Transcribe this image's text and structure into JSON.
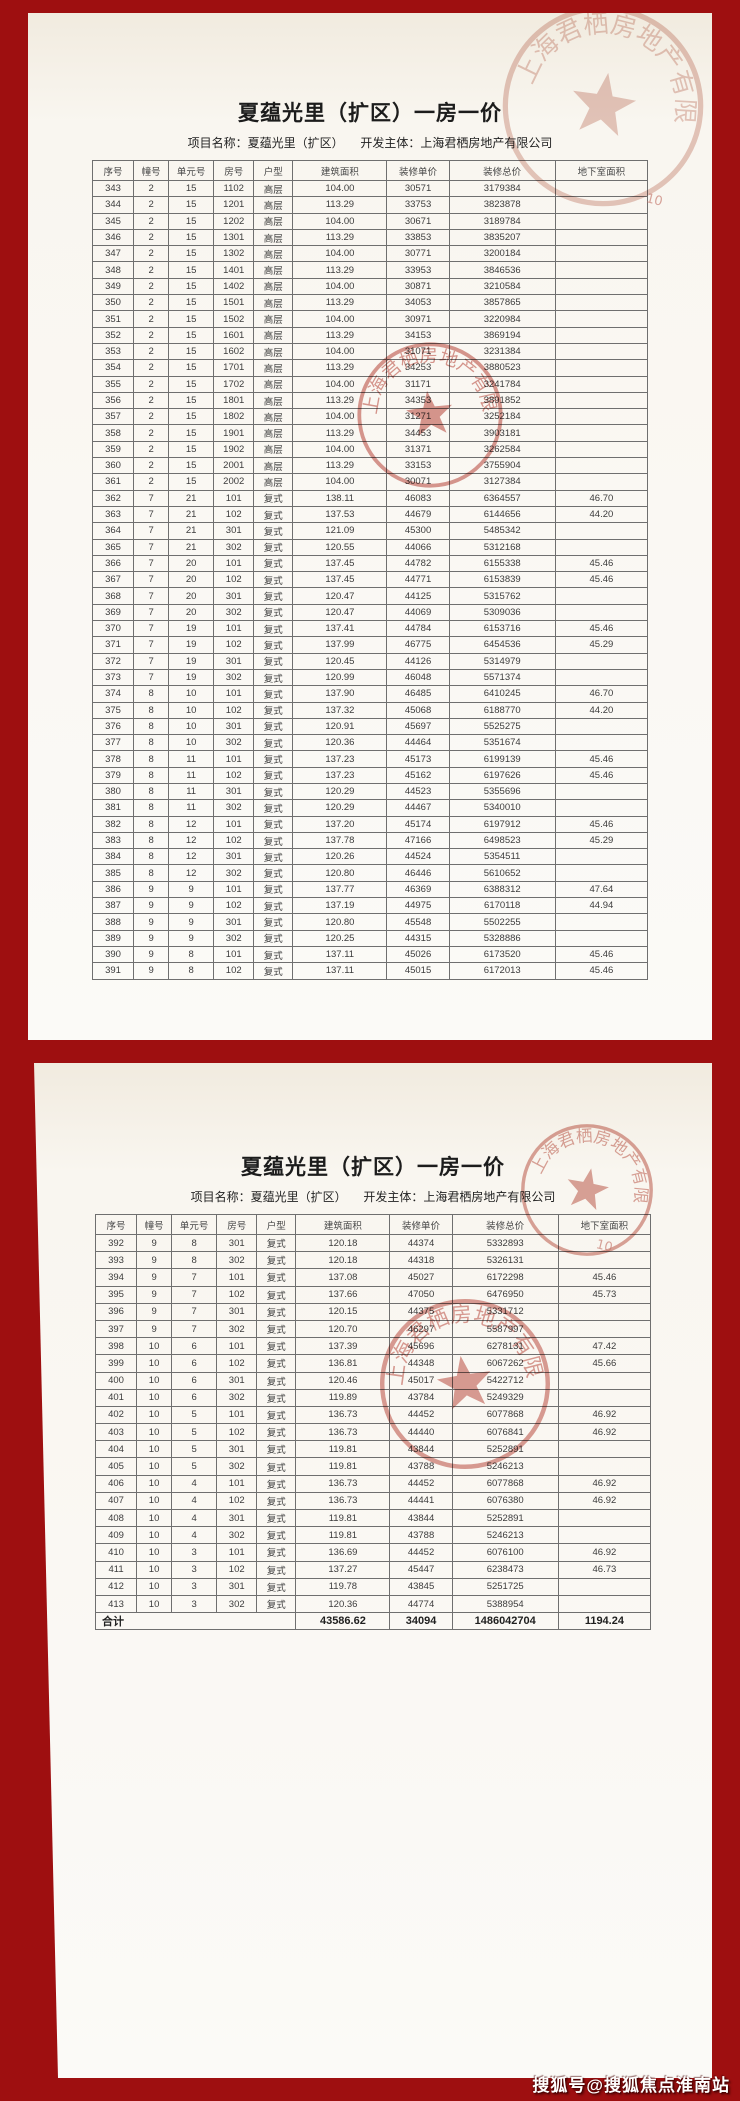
{
  "doc": {
    "title": "夏蕴光里（扩区）一房一价",
    "project_label": "项目名称：",
    "project_name": "夏蕴光里（扩区）",
    "developer_label": "开发主体：",
    "developer_name": "上海君栖房地产有限公司"
  },
  "table": {
    "headers": [
      "序号",
      "幢号",
      "单元号",
      "房号",
      "户型",
      "建筑面积",
      "装修单价",
      "装修总价",
      "地下室面积"
    ],
    "page1_rows": [
      [
        "343",
        "2",
        "15",
        "1102",
        "高层",
        "104.00",
        "30571",
        "3179384",
        ""
      ],
      [
        "344",
        "2",
        "15",
        "1201",
        "高层",
        "113.29",
        "33753",
        "3823878",
        ""
      ],
      [
        "345",
        "2",
        "15",
        "1202",
        "高层",
        "104.00",
        "30671",
        "3189784",
        ""
      ],
      [
        "346",
        "2",
        "15",
        "1301",
        "高层",
        "113.29",
        "33853",
        "3835207",
        ""
      ],
      [
        "347",
        "2",
        "15",
        "1302",
        "高层",
        "104.00",
        "30771",
        "3200184",
        ""
      ],
      [
        "348",
        "2",
        "15",
        "1401",
        "高层",
        "113.29",
        "33953",
        "3846536",
        ""
      ],
      [
        "349",
        "2",
        "15",
        "1402",
        "高层",
        "104.00",
        "30871",
        "3210584",
        ""
      ],
      [
        "350",
        "2",
        "15",
        "1501",
        "高层",
        "113.29",
        "34053",
        "3857865",
        ""
      ],
      [
        "351",
        "2",
        "15",
        "1502",
        "高层",
        "104.00",
        "30971",
        "3220984",
        ""
      ],
      [
        "352",
        "2",
        "15",
        "1601",
        "高层",
        "113.29",
        "34153",
        "3869194",
        ""
      ],
      [
        "353",
        "2",
        "15",
        "1602",
        "高层",
        "104.00",
        "31071",
        "3231384",
        ""
      ],
      [
        "354",
        "2",
        "15",
        "1701",
        "高层",
        "113.29",
        "34253",
        "3880523",
        ""
      ],
      [
        "355",
        "2",
        "15",
        "1702",
        "高层",
        "104.00",
        "31171",
        "3241784",
        ""
      ],
      [
        "356",
        "2",
        "15",
        "1801",
        "高层",
        "113.29",
        "34353",
        "3891852",
        ""
      ],
      [
        "357",
        "2",
        "15",
        "1802",
        "高层",
        "104.00",
        "31271",
        "3252184",
        ""
      ],
      [
        "358",
        "2",
        "15",
        "1901",
        "高层",
        "113.29",
        "34453",
        "3903181",
        ""
      ],
      [
        "359",
        "2",
        "15",
        "1902",
        "高层",
        "104.00",
        "31371",
        "3262584",
        ""
      ],
      [
        "360",
        "2",
        "15",
        "2001",
        "高层",
        "113.29",
        "33153",
        "3755904",
        ""
      ],
      [
        "361",
        "2",
        "15",
        "2002",
        "高层",
        "104.00",
        "30071",
        "3127384",
        ""
      ],
      [
        "362",
        "7",
        "21",
        "101",
        "复式",
        "138.11",
        "46083",
        "6364557",
        "46.70"
      ],
      [
        "363",
        "7",
        "21",
        "102",
        "复式",
        "137.53",
        "44679",
        "6144656",
        "44.20"
      ],
      [
        "364",
        "7",
        "21",
        "301",
        "复式",
        "121.09",
        "45300",
        "5485342",
        ""
      ],
      [
        "365",
        "7",
        "21",
        "302",
        "复式",
        "120.55",
        "44066",
        "5312168",
        ""
      ],
      [
        "366",
        "7",
        "20",
        "101",
        "复式",
        "137.45",
        "44782",
        "6155338",
        "45.46"
      ],
      [
        "367",
        "7",
        "20",
        "102",
        "复式",
        "137.45",
        "44771",
        "6153839",
        "45.46"
      ],
      [
        "368",
        "7",
        "20",
        "301",
        "复式",
        "120.47",
        "44125",
        "5315762",
        ""
      ],
      [
        "369",
        "7",
        "20",
        "302",
        "复式",
        "120.47",
        "44069",
        "5309036",
        ""
      ],
      [
        "370",
        "7",
        "19",
        "101",
        "复式",
        "137.41",
        "44784",
        "6153716",
        "45.46"
      ],
      [
        "371",
        "7",
        "19",
        "102",
        "复式",
        "137.99",
        "46775",
        "6454536",
        "45.29"
      ],
      [
        "372",
        "7",
        "19",
        "301",
        "复式",
        "120.45",
        "44126",
        "5314979",
        ""
      ],
      [
        "373",
        "7",
        "19",
        "302",
        "复式",
        "120.99",
        "46048",
        "5571374",
        ""
      ],
      [
        "374",
        "8",
        "10",
        "101",
        "复式",
        "137.90",
        "46485",
        "6410245",
        "46.70"
      ],
      [
        "375",
        "8",
        "10",
        "102",
        "复式",
        "137.32",
        "45068",
        "6188770",
        "44.20"
      ],
      [
        "376",
        "8",
        "10",
        "301",
        "复式",
        "120.91",
        "45697",
        "5525275",
        ""
      ],
      [
        "377",
        "8",
        "10",
        "302",
        "复式",
        "120.36",
        "44464",
        "5351674",
        ""
      ],
      [
        "378",
        "8",
        "11",
        "101",
        "复式",
        "137.23",
        "45173",
        "6199139",
        "45.46"
      ],
      [
        "379",
        "8",
        "11",
        "102",
        "复式",
        "137.23",
        "45162",
        "6197626",
        "45.46"
      ],
      [
        "380",
        "8",
        "11",
        "301",
        "复式",
        "120.29",
        "44523",
        "5355696",
        ""
      ],
      [
        "381",
        "8",
        "11",
        "302",
        "复式",
        "120.29",
        "44467",
        "5340010",
        ""
      ],
      [
        "382",
        "8",
        "12",
        "101",
        "复式",
        "137.20",
        "45174",
        "6197912",
        "45.46"
      ],
      [
        "383",
        "8",
        "12",
        "102",
        "复式",
        "137.78",
        "47166",
        "6498523",
        "45.29"
      ],
      [
        "384",
        "8",
        "12",
        "301",
        "复式",
        "120.26",
        "44524",
        "5354511",
        ""
      ],
      [
        "385",
        "8",
        "12",
        "302",
        "复式",
        "120.80",
        "46446",
        "5610652",
        ""
      ],
      [
        "386",
        "9",
        "9",
        "101",
        "复式",
        "137.77",
        "46369",
        "6388312",
        "47.64"
      ],
      [
        "387",
        "9",
        "9",
        "102",
        "复式",
        "137.19",
        "44975",
        "6170118",
        "44.94"
      ],
      [
        "388",
        "9",
        "9",
        "301",
        "复式",
        "120.80",
        "45548",
        "5502255",
        ""
      ],
      [
        "389",
        "9",
        "9",
        "302",
        "复式",
        "120.25",
        "44315",
        "5328886",
        ""
      ],
      [
        "390",
        "9",
        "8",
        "101",
        "复式",
        "137.11",
        "45026",
        "6173520",
        "45.46"
      ],
      [
        "391",
        "9",
        "8",
        "102",
        "复式",
        "137.11",
        "45015",
        "6172013",
        "45.46"
      ]
    ],
    "page2_rows": [
      [
        "392",
        "9",
        "8",
        "301",
        "复式",
        "120.18",
        "44374",
        "5332893",
        ""
      ],
      [
        "393",
        "9",
        "8",
        "302",
        "复式",
        "120.18",
        "44318",
        "5326131",
        ""
      ],
      [
        "394",
        "9",
        "7",
        "101",
        "复式",
        "137.08",
        "45027",
        "6172298",
        "45.46"
      ],
      [
        "395",
        "9",
        "7",
        "102",
        "复式",
        "137.66",
        "47050",
        "6476950",
        "45.73"
      ],
      [
        "396",
        "9",
        "7",
        "301",
        "复式",
        "120.15",
        "44375",
        "5331712",
        ""
      ],
      [
        "397",
        "9",
        "7",
        "302",
        "复式",
        "120.70",
        "46297",
        "5587997",
        ""
      ],
      [
        "398",
        "10",
        "6",
        "101",
        "复式",
        "137.39",
        "45696",
        "6278131",
        "47.42"
      ],
      [
        "399",
        "10",
        "6",
        "102",
        "复式",
        "136.81",
        "44348",
        "6067262",
        "45.66"
      ],
      [
        "400",
        "10",
        "6",
        "301",
        "复式",
        "120.46",
        "45017",
        "5422712",
        ""
      ],
      [
        "401",
        "10",
        "6",
        "302",
        "复式",
        "119.89",
        "43784",
        "5249329",
        ""
      ],
      [
        "402",
        "10",
        "5",
        "101",
        "复式",
        "136.73",
        "44452",
        "6077868",
        "46.92"
      ],
      [
        "403",
        "10",
        "5",
        "102",
        "复式",
        "136.73",
        "44440",
        "6076841",
        "46.92"
      ],
      [
        "404",
        "10",
        "5",
        "301",
        "复式",
        "119.81",
        "43844",
        "5252891",
        ""
      ],
      [
        "405",
        "10",
        "5",
        "302",
        "复式",
        "119.81",
        "43788",
        "5246213",
        ""
      ],
      [
        "406",
        "10",
        "4",
        "101",
        "复式",
        "136.73",
        "44452",
        "6077868",
        "46.92"
      ],
      [
        "407",
        "10",
        "4",
        "102",
        "复式",
        "136.73",
        "44441",
        "6076380",
        "46.92"
      ],
      [
        "408",
        "10",
        "4",
        "301",
        "复式",
        "119.81",
        "43844",
        "5252891",
        ""
      ],
      [
        "409",
        "10",
        "4",
        "302",
        "复式",
        "119.81",
        "43788",
        "5246213",
        ""
      ],
      [
        "410",
        "10",
        "3",
        "101",
        "复式",
        "136.69",
        "44452",
        "6076100",
        "46.92"
      ],
      [
        "411",
        "10",
        "3",
        "102",
        "复式",
        "137.27",
        "45447",
        "6238473",
        "46.73"
      ],
      [
        "412",
        "10",
        "3",
        "301",
        "复式",
        "119.78",
        "43845",
        "5251725",
        ""
      ],
      [
        "413",
        "10",
        "3",
        "302",
        "复式",
        "120.36",
        "44774",
        "5388954",
        ""
      ]
    ],
    "total": {
      "label": "合计",
      "area": "43586.62",
      "unit_price": "34094",
      "total_price": "1486042704",
      "basement": "1194.24"
    }
  },
  "stamps": {
    "ring_text": "上海君栖房地产有限公司",
    "handwritten_mark": "10"
  },
  "watermark": {
    "text": "搜狐号@搜狐焦点淮南站"
  },
  "colors": {
    "background": "#9e0f10",
    "paper": "#f9f6f0",
    "stamp_red": "#c0544a",
    "table_border": "#6f6f6f"
  }
}
